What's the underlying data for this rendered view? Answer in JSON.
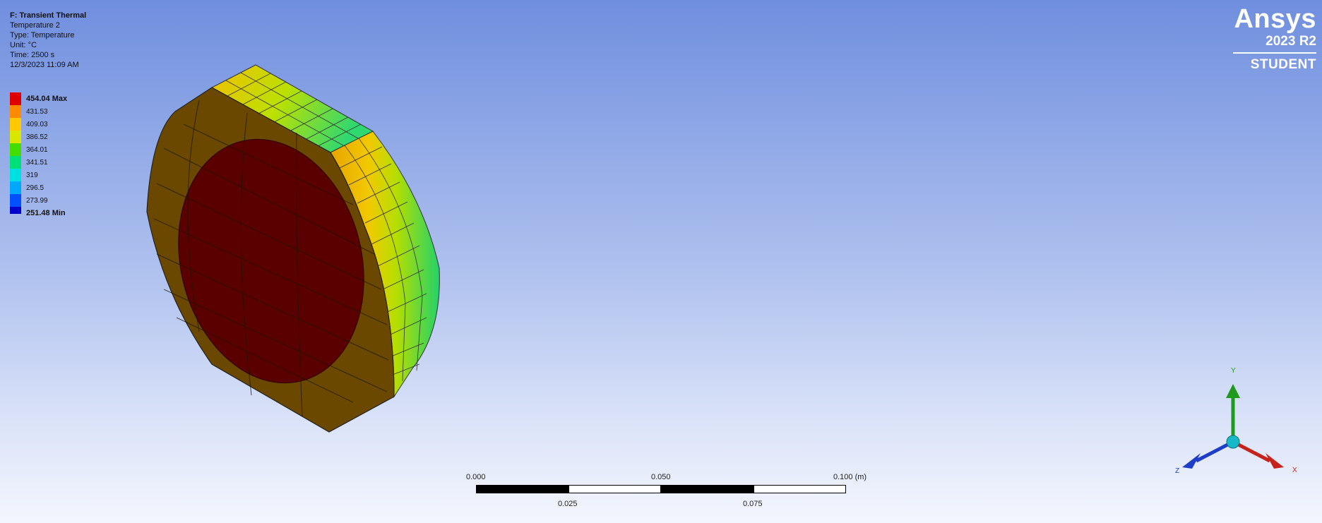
{
  "info": {
    "line1": "F: Transient Thermal",
    "line2": "Temperature 2",
    "line3": "Type: Temperature",
    "line4": "Unit: °C",
    "line5": "Time: 2500 s",
    "line6": "12/3/2023 11:09 AM"
  },
  "legend": {
    "entries": [
      {
        "label": "454.04 Max",
        "color": "#e00000"
      },
      {
        "label": "431.53",
        "color": "#ff8a00"
      },
      {
        "label": "409.03",
        "color": "#ffc800"
      },
      {
        "label": "386.52",
        "color": "#d8e600"
      },
      {
        "label": "364.01",
        "color": "#44dd00"
      },
      {
        "label": "341.51",
        "color": "#00e07a"
      },
      {
        "label": "319",
        "color": "#00e0e0"
      },
      {
        "label": "296.5",
        "color": "#00a8ff"
      },
      {
        "label": "273.99",
        "color": "#0050ff"
      }
    ],
    "min_label": "251.48 Min",
    "min_color": "#0000cc"
  },
  "logo": {
    "brand": "Ansys",
    "version": "2023 R2",
    "edition": "STUDENT"
  },
  "scale_bar": {
    "top_labels": [
      "0.000",
      "0.050",
      "0.100 (m)"
    ],
    "bottom_labels": [
      "0.025",
      "0.075"
    ]
  },
  "triad": {
    "x_label": "X",
    "y_label": "Y",
    "z_label": "Z",
    "x_color": "#c8221c",
    "y_color": "#1f9a1f",
    "z_color": "#1e3ec8"
  }
}
